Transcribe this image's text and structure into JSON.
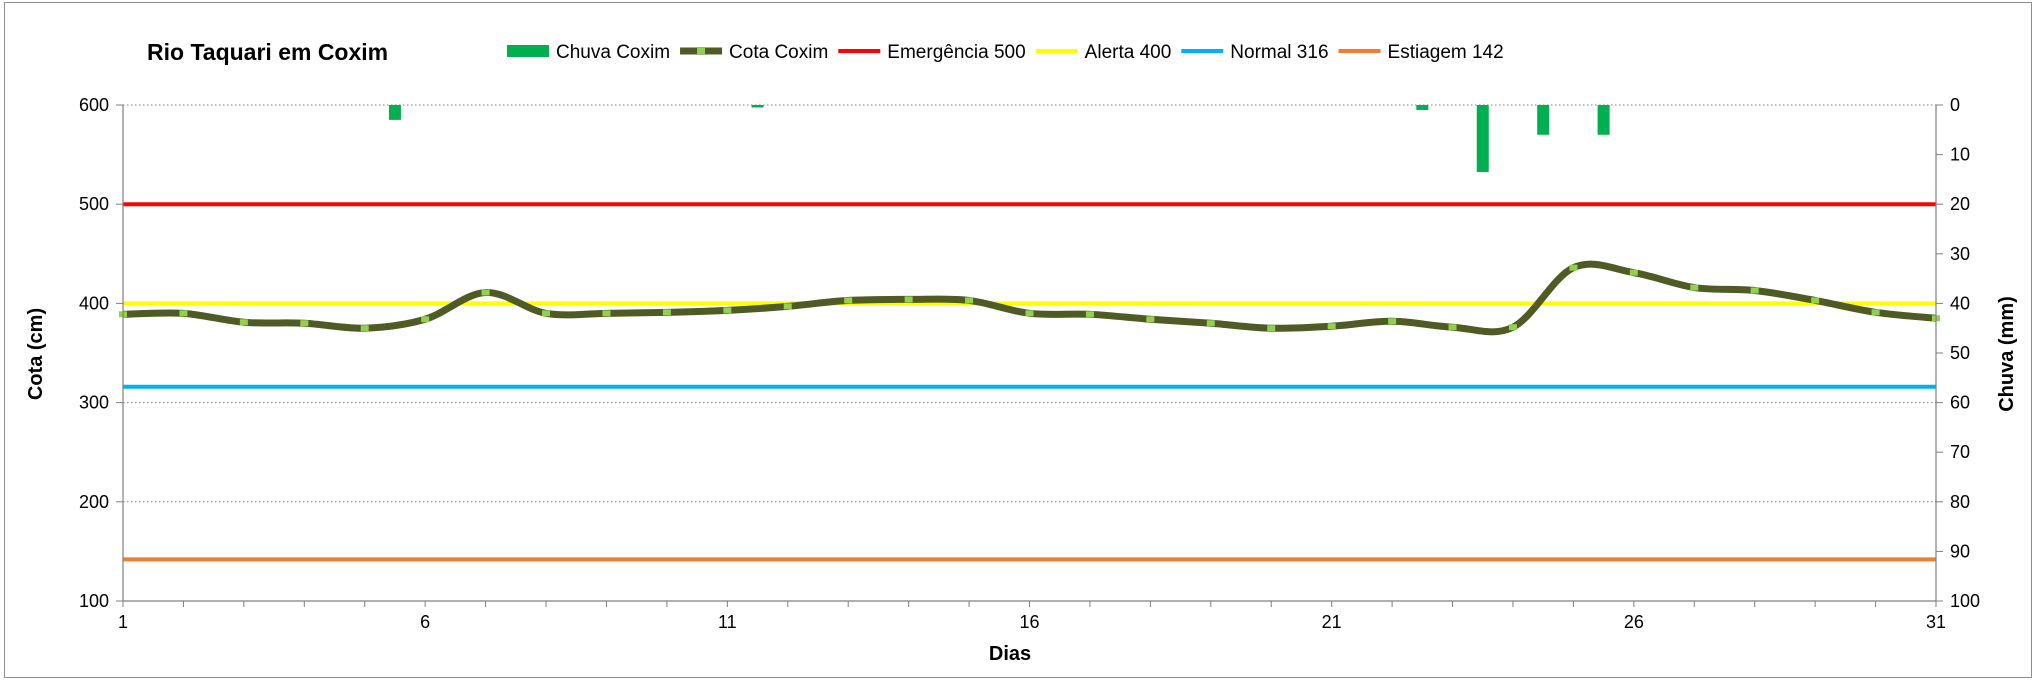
{
  "chart_data": {
    "type": "line",
    "title": "Rio Taquari em Coxim",
    "xlabel": "Dias",
    "ylabel": "Cota  (cm)",
    "y2label": "Chuva (mm)",
    "xlim": [
      1,
      31
    ],
    "ylim": [
      100,
      600
    ],
    "y2lim": [
      0,
      100
    ],
    "y2_inverted": true,
    "x_ticks": [
      1,
      6,
      11,
      16,
      21,
      26,
      31
    ],
    "y_ticks": [
      100,
      200,
      300,
      400,
      500,
      600
    ],
    "y2_ticks": [
      0,
      10,
      20,
      30,
      40,
      50,
      60,
      70,
      80,
      90,
      100
    ],
    "grid": "horizontal dotted",
    "legend_position": "top",
    "series": [
      {
        "name": "Cota Coxim",
        "kind": "line",
        "color": "#4f5a24",
        "marker_color": "#92d050",
        "x": [
          1,
          2,
          3,
          4,
          5,
          6,
          7,
          8,
          9,
          10,
          11,
          12,
          13,
          14,
          15,
          16,
          17,
          18,
          19,
          20,
          21,
          22,
          23,
          24,
          25,
          26,
          27,
          28,
          29,
          30,
          31
        ],
        "values": [
          389,
          390,
          381,
          380,
          375,
          384,
          411,
          390,
          390,
          391,
          393,
          397,
          403,
          404,
          403,
          390,
          389,
          384,
          380,
          375,
          377,
          382,
          376,
          376,
          436,
          431,
          416,
          413,
          403,
          391,
          385
        ]
      },
      {
        "name": "Chuva Coxim",
        "kind": "bar",
        "axis": "secondary",
        "color": "#00b050",
        "x": [
          5.5,
          11.5,
          22.5,
          23.5,
          24.5,
          25.5
        ],
        "values": [
          3,
          0.5,
          1,
          13.5,
          6,
          6
        ]
      }
    ],
    "reference_lines": [
      {
        "name": "Emergência 500",
        "value": 500,
        "color": "#ff0000"
      },
      {
        "name": "Alerta 400",
        "value": 400,
        "color": "#ffff00"
      },
      {
        "name": "Normal  316",
        "value": 316,
        "color": "#00b0f0"
      },
      {
        "name": "Estiagem 142",
        "value": 142,
        "color": "#ed7d31"
      }
    ]
  }
}
